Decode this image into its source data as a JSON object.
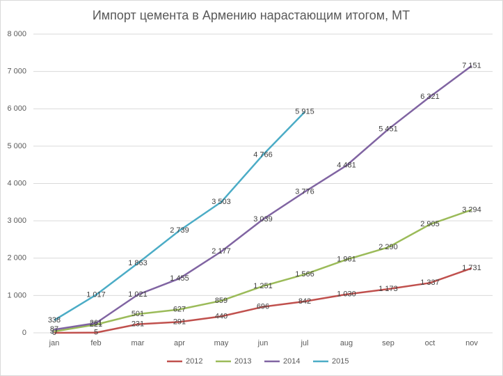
{
  "chart_data": {
    "type": "line",
    "title": "Импорт цемента в Армению нарастающим итогом, МТ",
    "categories": [
      "jan",
      "feb",
      "mar",
      "apr",
      "may",
      "jun",
      "jul",
      "aug",
      "sep",
      "oct",
      "nov"
    ],
    "ylim": [
      0,
      8000
    ],
    "yticks": [
      0,
      {
        "value": 1000,
        "label": "1 000"
      },
      {
        "value": 2000,
        "label": "2 000"
      },
      {
        "value": 3000,
        "label": "3 000"
      },
      {
        "value": 4000,
        "label": "4 000"
      },
      {
        "value": 5000,
        "label": "5 000"
      },
      {
        "value": 6000,
        "label": "6 000"
      },
      {
        "value": 7000,
        "label": "7 000"
      },
      {
        "value": 8000,
        "label": "8 000"
      }
    ],
    "grid": true,
    "legend": "bottom",
    "series": [
      {
        "name": "2012",
        "color": "#c0504d",
        "values": [
          0,
          5,
          231,
          291,
          440,
          696,
          842,
          1030,
          1173,
          1337,
          1731
        ],
        "value_labels": [
          "0",
          "5",
          "231",
          "291",
          "440",
          "696",
          "842",
          "1 030",
          "1 173",
          "1 337",
          "1 731"
        ]
      },
      {
        "name": "2013",
        "color": "#9bbb59",
        "values": [
          37,
          221,
          501,
          627,
          859,
          1251,
          1566,
          1961,
          2290,
          2905,
          3294
        ],
        "value_labels": [
          "37",
          "221",
          "501",
          "627",
          "859",
          "1 251",
          "1 566",
          "1 961",
          "2 290",
          "2 905",
          "3 294"
        ]
      },
      {
        "name": "2014",
        "color": "#8064a2",
        "values": [
          87,
          261,
          1021,
          1455,
          2177,
          3039,
          3776,
          4481,
          5451,
          6321,
          7151
        ],
        "value_labels": [
          "87",
          "261",
          "1 021",
          "1 455",
          "2 177",
          "3 039",
          "3 776",
          "4 481",
          "5 451",
          "6 321",
          "7 151"
        ]
      },
      {
        "name": "2015",
        "color": "#4bacc6",
        "values": [
          338,
          1017,
          1863,
          2739,
          3503,
          4766,
          5915,
          null,
          null,
          null,
          null
        ],
        "value_labels": [
          "338",
          "1 017",
          "1 863",
          "2 739",
          "3 503",
          "4 766",
          "5 915",
          null,
          null,
          null,
          null
        ]
      }
    ]
  }
}
